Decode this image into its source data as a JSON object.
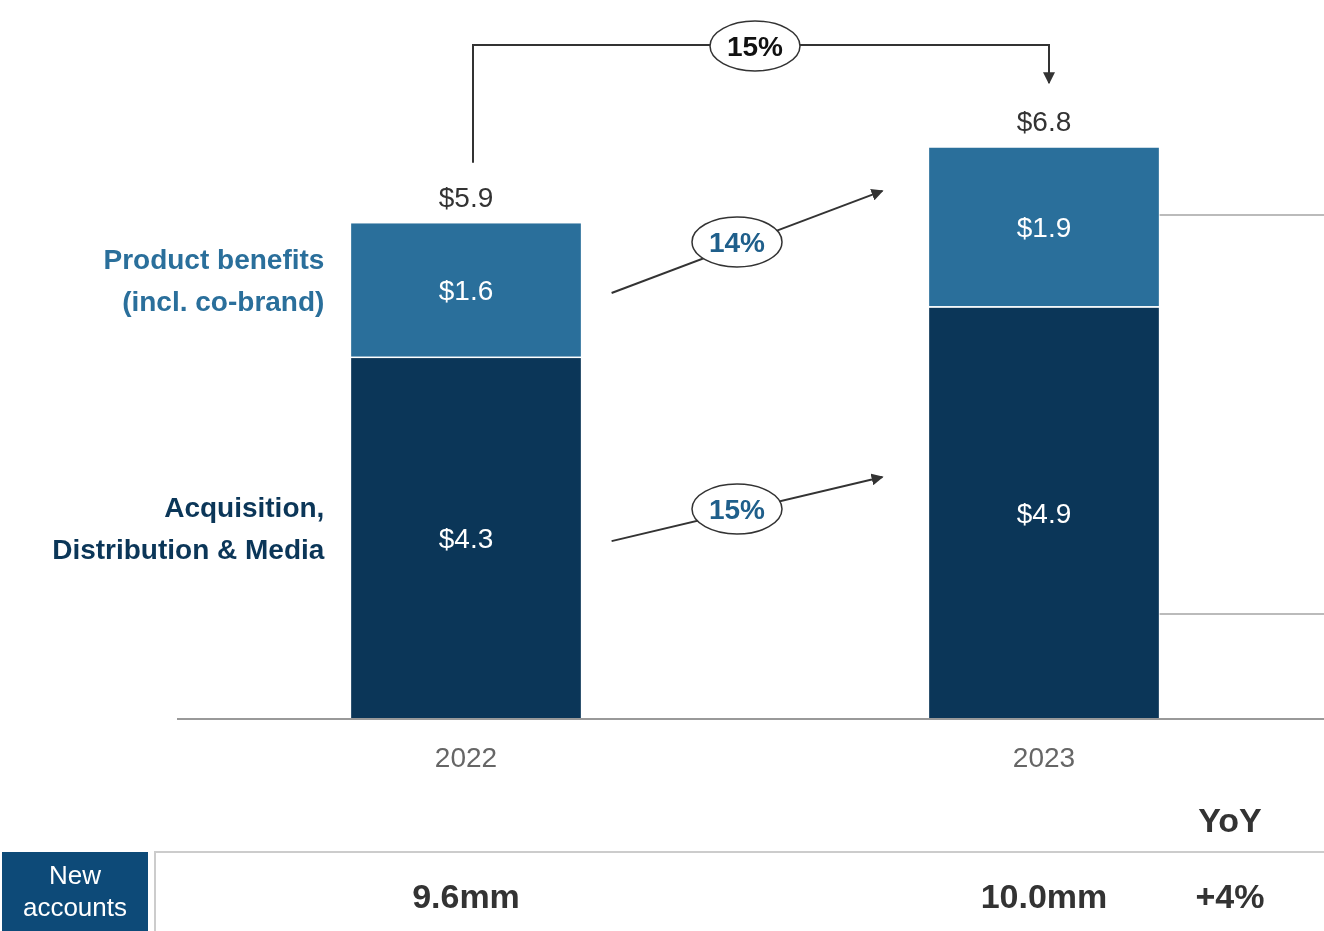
{
  "chart_data": {
    "type": "bar",
    "stacked": true,
    "categories": [
      "2022",
      "2023"
    ],
    "series": [
      {
        "name": "Acquisition, Distribution & Media",
        "color": "#0b3658",
        "values": [
          4.3,
          4.9
        ],
        "value_labels": [
          "$4.3",
          "$4.9"
        ]
      },
      {
        "name": "Product benefits (incl. co-brand)",
        "color": "#2a6f9b",
        "values": [
          1.6,
          1.9
        ],
        "value_labels": [
          "$1.6",
          "$1.9"
        ]
      }
    ],
    "totals": [
      "$5.9",
      "$6.8"
    ],
    "annotations": [
      "15%",
      "15%",
      "14%",
      "YoY",
      "New accounts",
      "9.6mm",
      "10.0mm",
      "+4%"
    ]
  }
}
